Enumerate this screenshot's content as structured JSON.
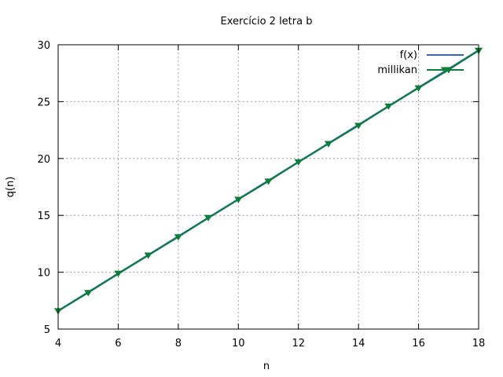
{
  "chart_data": {
    "type": "line",
    "title": "Exercício 2 letra b",
    "xlabel": "n",
    "ylabel": "q(n)",
    "xlim": [
      4,
      18
    ],
    "ylim": [
      5,
      30
    ],
    "xticks": [
      4,
      6,
      8,
      10,
      12,
      14,
      16,
      18
    ],
    "yticks": [
      5,
      10,
      15,
      20,
      25,
      30
    ],
    "grid": true,
    "legend_position": "top-right",
    "series": [
      {
        "name": "f(x)",
        "style": "line",
        "color": "#3465c0",
        "x": [
          4,
          18
        ],
        "y": [
          6.6,
          29.5
        ]
      },
      {
        "name": "millikan",
        "style": "line-with-triangle-markers",
        "color": "#0b7e3a",
        "x": [
          4,
          5,
          6,
          7,
          8,
          9,
          10,
          11,
          12,
          13,
          14,
          15,
          16,
          17,
          18
        ],
        "y": [
          6.6,
          8.2,
          9.9,
          11.5,
          13.1,
          14.8,
          16.4,
          18.0,
          19.7,
          21.3,
          22.9,
          24.6,
          26.2,
          27.8,
          29.5
        ]
      }
    ]
  }
}
